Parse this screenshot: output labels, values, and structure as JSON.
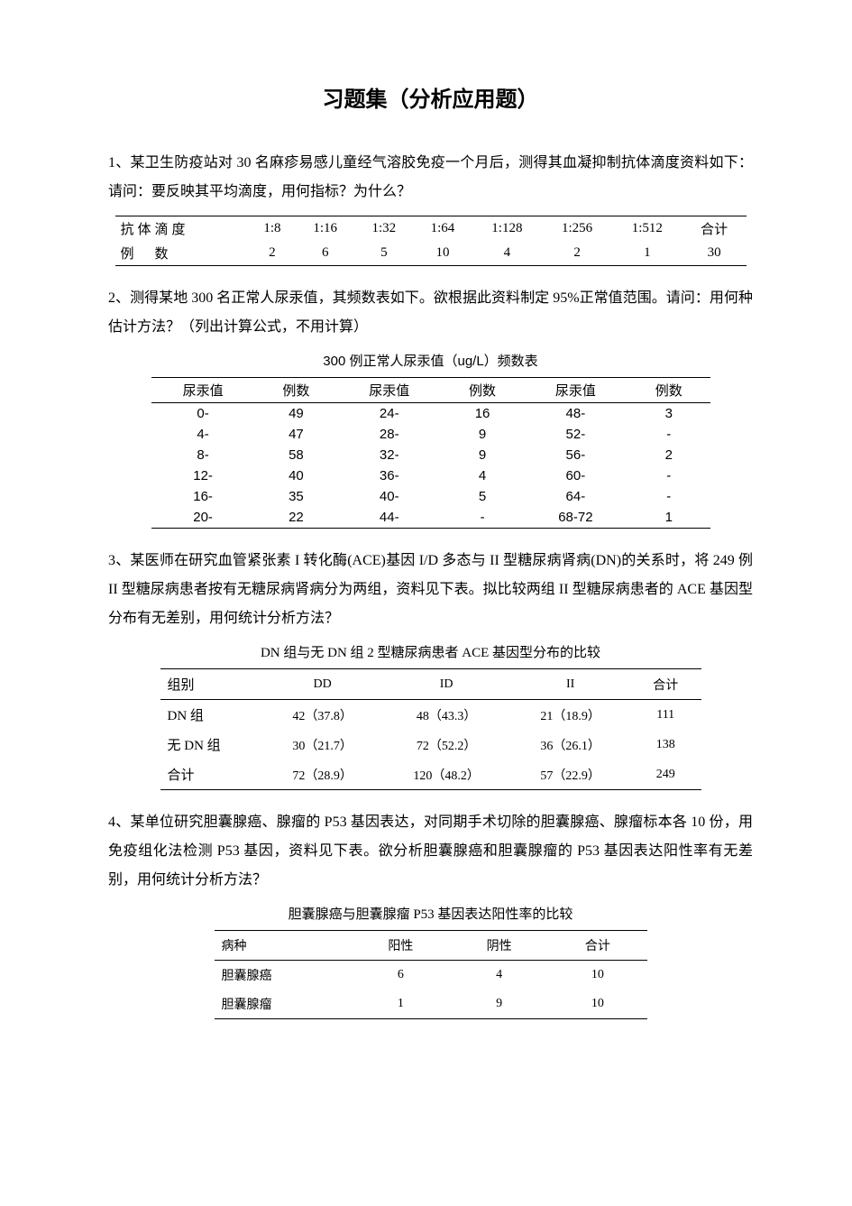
{
  "title": "习题集（分析应用题）",
  "q1": {
    "text": "1、某卫生防疫站对 30 名麻疹易感儿童经气溶胶免疫一个月后，测得其血凝抑制抗体滴度资料如下：请问：要反映其平均滴度，用何指标？为什么？",
    "row1_label": "抗体滴度",
    "row2_label": "例　数",
    "cols": [
      "1:8",
      "1:16",
      "1:32",
      "1:64",
      "1:128",
      "1:256",
      "1:512",
      "合计"
    ],
    "counts": [
      "2",
      "6",
      "5",
      "10",
      "4",
      "2",
      "1",
      "30"
    ]
  },
  "q2": {
    "text": "2、测得某地 300 名正常人尿汞值，其频数表如下。欲根据此资料制定 95%正常值范围。请问：用何种估计方法？（列出计算公式，不用计算）",
    "caption": "300 例正常人尿汞值（ug/L）频数表",
    "headers": [
      "尿汞值",
      "例数",
      "尿汞值",
      "例数",
      "尿汞值",
      "例数"
    ],
    "rows": [
      [
        "0-",
        "49",
        "24-",
        "16",
        "48-",
        "3"
      ],
      [
        "4-",
        "47",
        "28-",
        "9",
        "52-",
        "-"
      ],
      [
        "8-",
        "58",
        "32-",
        "9",
        "56-",
        "2"
      ],
      [
        "12-",
        "40",
        "36-",
        "4",
        "60-",
        "-"
      ],
      [
        "16-",
        "35",
        "40-",
        "5",
        "64-",
        "-"
      ],
      [
        "20-",
        "22",
        "44-",
        "-",
        "68-72",
        "1"
      ]
    ]
  },
  "q3": {
    "text": "3、某医师在研究血管紧张素 I 转化酶(ACE)基因 I/D 多态与 II 型糖尿病肾病(DN)的关系时，将 249 例 II 型糖尿病患者按有无糖尿病肾病分为两组，资料见下表。拟比较两组 II 型糖尿病患者的 ACE 基因型分布有无差别，用何统计分析方法？",
    "caption": "DN 组与无 DN 组 2 型糖尿病患者 ACE 基因型分布的比较",
    "headers": [
      "组别",
      "DD",
      "ID",
      "II",
      "合计"
    ],
    "rows": [
      [
        "DN 组",
        "42（37.8）",
        "48（43.3）",
        "21（18.9）",
        "111"
      ],
      [
        "无 DN 组",
        "30（21.7）",
        "72（52.2）",
        "36（26.1）",
        "138"
      ],
      [
        "合计",
        "72（28.9）",
        "120（48.2）",
        "57（22.9）",
        "249"
      ]
    ]
  },
  "q4": {
    "text": "4、某单位研究胆囊腺癌、腺瘤的 P53 基因表达，对同期手术切除的胆囊腺癌、腺瘤标本各 10 份，用免疫组化法检测 P53 基因，资料见下表。欲分析胆囊腺癌和胆囊腺瘤的 P53 基因表达阳性率有无差别，用何统计分析方法？",
    "caption": "胆囊腺癌与胆囊腺瘤 P53 基因表达阳性率的比较",
    "headers": [
      "病种",
      "阳性",
      "阴性",
      "合计"
    ],
    "rows": [
      [
        "胆囊腺癌",
        "6",
        "4",
        "10"
      ],
      [
        "胆囊腺瘤",
        "1",
        "9",
        "10"
      ]
    ]
  }
}
